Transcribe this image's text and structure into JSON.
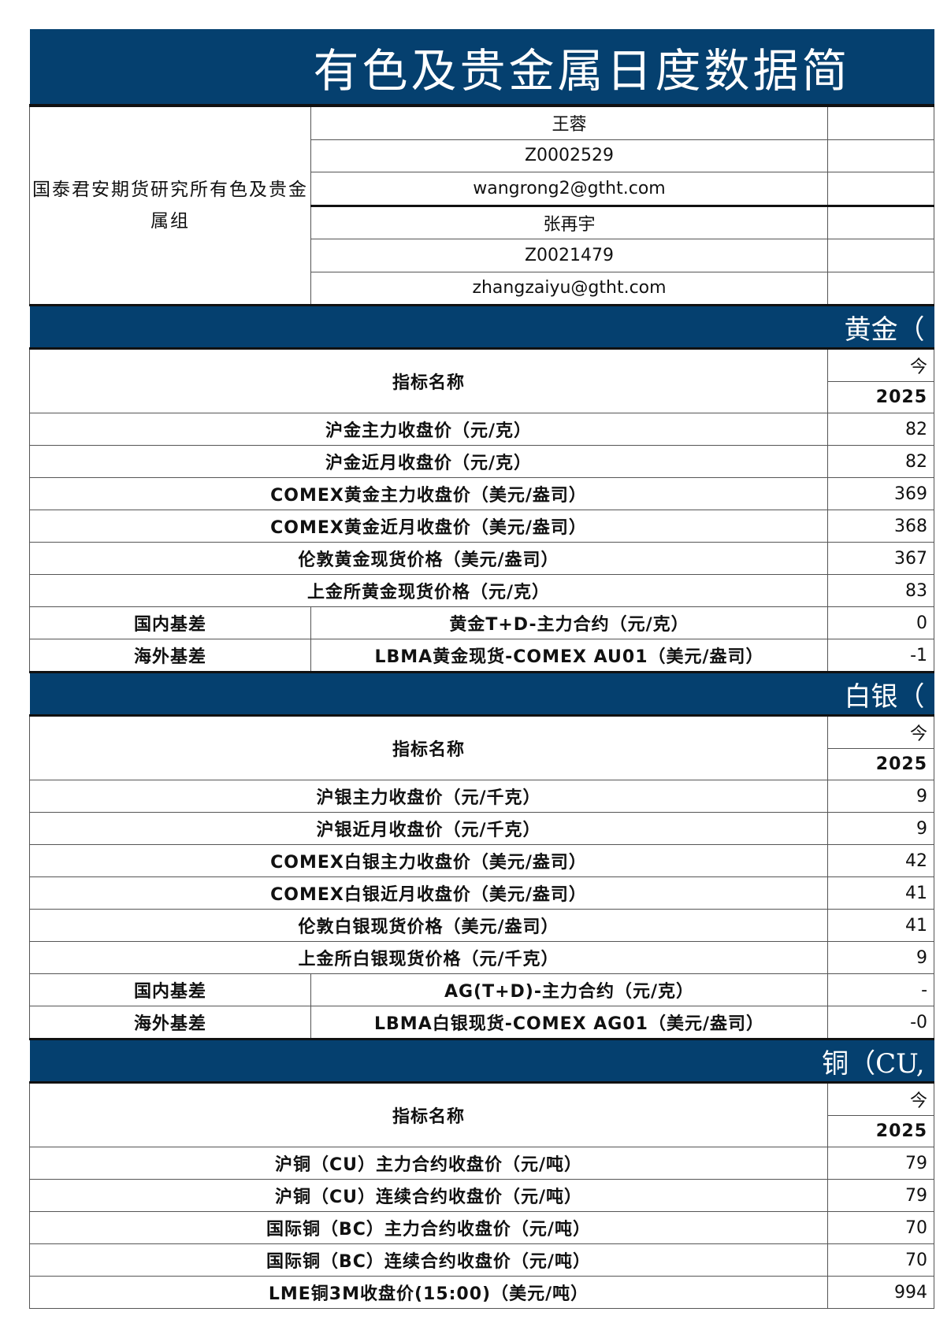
{
  "title": "有色及贵金属日度数据简",
  "group": "国泰君安期货研究所有色及贵金属组",
  "analysts": [
    "王蓉",
    "Z0002529",
    "wangrong2@gtht.com",
    "张再宇",
    "Z0021479",
    "zhangzaiyu@gtht.com"
  ],
  "sections": [
    {
      "header": "黄金（",
      "indicator_label": "指标名称",
      "col_top": "今",
      "col_date": "2025",
      "rows": [
        {
          "label": "沪金主力收盘价（元/克）",
          "value": "82"
        },
        {
          "label": "沪金近月收盘价（元/克）",
          "value": "82"
        },
        {
          "label": "COMEX黄金主力收盘价（美元/盎司）",
          "value": "369"
        },
        {
          "label": "COMEX黄金近月收盘价（美元/盎司）",
          "value": "368"
        },
        {
          "label": "伦敦黄金现货价格（美元/盎司）",
          "value": "367"
        },
        {
          "label": "上金所黄金现货价格（元/克）",
          "value": "83"
        },
        {
          "group": "国内基差",
          "label": "黄金T+D-主力合约（元/克）",
          "value": "0"
        },
        {
          "group": "海外基差",
          "label": "LBMA黄金现货-COMEX AU01（美元/盎司）",
          "value": "-1"
        }
      ]
    },
    {
      "header": "白银（",
      "indicator_label": "指标名称",
      "col_top": "今",
      "col_date": "2025",
      "rows": [
        {
          "label": "沪银主力收盘价（元/千克）",
          "value": "9"
        },
        {
          "label": "沪银近月收盘价（元/千克）",
          "value": "9"
        },
        {
          "label": "COMEX白银主力收盘价（美元/盎司）",
          "value": "42"
        },
        {
          "label": "COMEX白银近月收盘价（美元/盎司）",
          "value": "41"
        },
        {
          "label": "伦敦白银现货价格（美元/盎司）",
          "value": "41"
        },
        {
          "label": "上金所白银现货价格（元/千克）",
          "value": "9"
        },
        {
          "group": "国内基差",
          "label": "AG(T+D)-主力合约（元/克）",
          "value": "-"
        },
        {
          "group": "海外基差",
          "label": "LBMA白银现货-COMEX AG01（美元/盎司）",
          "value": "-0"
        }
      ]
    },
    {
      "header": "铜（CU,",
      "indicator_label": "指标名称",
      "col_top": "今",
      "col_date": "2025",
      "rows": [
        {
          "label": "沪铜（CU）主力合约收盘价（元/吨）",
          "value": "79"
        },
        {
          "label": "沪铜（CU）连续合约收盘价（元/吨）",
          "value": "79"
        },
        {
          "label": "国际铜（BC）主力合约收盘价（元/吨）",
          "value": "70"
        },
        {
          "label": "国际铜（BC）连续合约收盘价（元/吨）",
          "value": "70"
        },
        {
          "label": "LME铜3M收盘价(15:00)（美元/吨）",
          "value": "994"
        }
      ]
    }
  ],
  "colors": {
    "header_bg": "#05406f",
    "header_text": "#ffffff",
    "border": "#555555"
  }
}
